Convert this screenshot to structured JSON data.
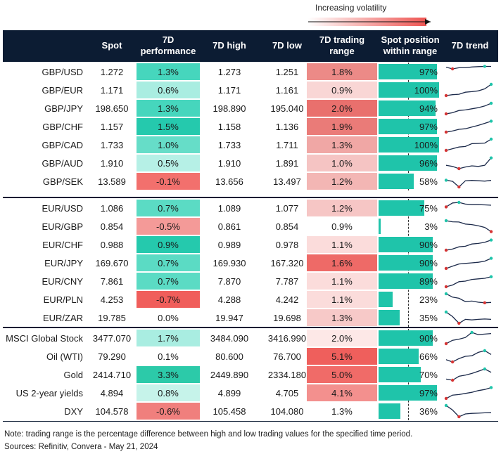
{
  "legend": {
    "label": "Increasing volatility"
  },
  "columns": {
    "spot": "Spot",
    "perf_line1": "7D",
    "perf_line2": "performance",
    "high": "7D high",
    "low": "7D low",
    "range_line1": "7D trading",
    "range_line2": "range",
    "pos_line1": "Spot position",
    "pos_line2": "within range",
    "trend": "7D trend"
  },
  "groups": [
    {
      "rows": [
        {
          "name": "GBP/USD",
          "spot": "1.272",
          "perf": "1.3%",
          "high": "1.273",
          "low": "1.251",
          "range": "1.8%",
          "pos": "97%",
          "pos_value": 97,
          "perf_color": "#46d6bd",
          "range_color": "#ec8a87",
          "trend": [
            0.9,
            0.75,
            0.85,
            0.85,
            0.92,
            0.95,
            0.97,
            0.97
          ]
        },
        {
          "name": "GBP/EUR",
          "spot": "1.171",
          "perf": "0.6%",
          "high": "1.171",
          "low": "1.161",
          "range": "0.9%",
          "pos": "100%",
          "pos_value": 100,
          "perf_color": "#a9ede1",
          "range_color": "#f9d6d5",
          "trend": [
            0.0,
            0.08,
            0.12,
            0.3,
            0.35,
            0.42,
            0.6,
            1.0
          ]
        },
        {
          "name": "GBP/JPY",
          "spot": "198.650",
          "perf": "1.3%",
          "high": "198.890",
          "low": "195.040",
          "range": "2.0%",
          "pos": "94%",
          "pos_value": 94,
          "perf_color": "#46d6bd",
          "range_color": "#e9706d",
          "trend": [
            0.0,
            0.1,
            0.3,
            0.35,
            0.45,
            0.55,
            0.7,
            0.94
          ]
        },
        {
          "name": "GBP/CHF",
          "spot": "1.157",
          "perf": "1.5%",
          "high": "1.158",
          "low": "1.136",
          "range": "1.9%",
          "pos": "97%",
          "pos_value": 97,
          "perf_color": "#25c9ad",
          "range_color": "#ea7b78",
          "trend": [
            0.0,
            0.1,
            0.25,
            0.3,
            0.45,
            0.6,
            0.78,
            0.97
          ]
        },
        {
          "name": "GBP/CAD",
          "spot": "1.733",
          "perf": "1.0%",
          "high": "1.733",
          "low": "1.711",
          "range": "1.3%",
          "pos": "100%",
          "pos_value": 100,
          "perf_color": "#66ddc8",
          "range_color": "#f0a7a5",
          "trend": [
            0.0,
            0.15,
            0.3,
            0.35,
            0.6,
            0.62,
            0.65,
            1.0
          ]
        },
        {
          "name": "GBP/AUD",
          "spot": "1.910",
          "perf": "0.5%",
          "high": "1.910",
          "low": "1.891",
          "range": "1.0%",
          "pos": "96%",
          "pos_value": 96,
          "perf_color": "#b6f0e6",
          "range_color": "#f5c4c3",
          "trend": [
            0.3,
            0.2,
            0.0,
            0.15,
            0.25,
            0.2,
            0.3,
            0.96
          ]
        },
        {
          "name": "GBP/SEK",
          "spot": "13.589",
          "perf": "-0.1%",
          "high": "13.656",
          "low": "13.497",
          "range": "1.2%",
          "pos": "58%",
          "pos_value": 58,
          "perf_color": "#f2706d",
          "range_color": "#f3b6b4",
          "trend": [
            0.6,
            0.5,
            0.0,
            0.55,
            0.58,
            0.55,
            0.52,
            0.58
          ]
        }
      ]
    },
    {
      "rows": [
        {
          "name": "EUR/USD",
          "spot": "1.086",
          "perf": "0.7%",
          "high": "1.089",
          "low": "1.077",
          "range": "1.2%",
          "pos": "75%",
          "pos_value": 75,
          "perf_color": "#5bdbc4",
          "range_color": "#f6c6c5",
          "trend": [
            0.6,
            0.95,
            1.0,
            0.85,
            0.8,
            0.8,
            0.78,
            0.75
          ]
        },
        {
          "name": "EUR/GBP",
          "spot": "0.854",
          "perf": "-0.5%",
          "high": "0.861",
          "low": "0.854",
          "range": "0.9%",
          "pos": "3%",
          "pos_value": 3,
          "perf_color": "#f49a98",
          "range_color": "#ffffff",
          "trend": [
            1.0,
            0.9,
            0.88,
            0.7,
            0.65,
            0.55,
            0.4,
            0.03
          ]
        },
        {
          "name": "EUR/CHF",
          "spot": "0.988",
          "perf": "0.9%",
          "high": "0.989",
          "low": "0.978",
          "range": "1.1%",
          "pos": "90%",
          "pos_value": 90,
          "perf_color": "#25c9ad",
          "range_color": "#fbdcdb",
          "trend": [
            0.0,
            0.1,
            0.3,
            0.35,
            0.55,
            0.6,
            0.7,
            0.9
          ]
        },
        {
          "name": "EUR/JPY",
          "spot": "169.670",
          "perf": "0.7%",
          "high": "169.930",
          "low": "167.320",
          "range": "1.6%",
          "pos": "90%",
          "pos_value": 90,
          "perf_color": "#5bdbc4",
          "range_color": "#ee6a67",
          "trend": [
            0.0,
            0.2,
            0.4,
            0.45,
            0.5,
            0.55,
            0.65,
            0.9
          ]
        },
        {
          "name": "EUR/CNY",
          "spot": "7.861",
          "perf": "0.7%",
          "high": "7.870",
          "low": "7.787",
          "range": "1.1%",
          "pos": "89%",
          "pos_value": 89,
          "perf_color": "#5bdbc4",
          "range_color": "#fbdcdb",
          "trend": [
            0.0,
            0.15,
            0.45,
            0.5,
            0.65,
            0.7,
            0.75,
            0.89
          ]
        },
        {
          "name": "EUR/PLN",
          "spot": "4.253",
          "perf": "-0.7%",
          "high": "4.288",
          "low": "4.242",
          "range": "1.1%",
          "pos": "23%",
          "pos_value": 23,
          "perf_color": "#f05e5b",
          "range_color": "#fbdcdb",
          "trend": [
            1.0,
            0.7,
            0.6,
            0.3,
            0.35,
            0.25,
            0.2,
            0.23
          ]
        },
        {
          "name": "EUR/ZAR",
          "spot": "19.785",
          "perf": "0.0%",
          "high": "19.947",
          "low": "19.698",
          "range": "1.3%",
          "pos": "35%",
          "pos_value": 35,
          "perf_color": "#ffffff",
          "range_color": "#f7c9c8",
          "trend": [
            1.0,
            0.6,
            0.0,
            0.35,
            0.3,
            0.35,
            0.38,
            0.35
          ]
        }
      ]
    },
    {
      "rows": [
        {
          "name": "MSCI Global Stock",
          "spot": "3477.070",
          "perf": "1.7%",
          "high": "3484.090",
          "low": "3416.990",
          "range": "2.0%",
          "pos": "90%",
          "pos_value": 90,
          "perf_color": "#a9ede1",
          "range_color": "#fde8e7",
          "trend": [
            0.0,
            0.3,
            0.4,
            0.55,
            1.0,
            0.8,
            0.85,
            0.9
          ]
        },
        {
          "name": "Oil (WTI)",
          "spot": "79.290",
          "perf": "0.1%",
          "high": "80.600",
          "low": "76.700",
          "range": "5.1%",
          "pos": "66%",
          "pos_value": 66,
          "perf_color": "#ffffff",
          "range_color": "#ef5f5c",
          "trend": [
            0.2,
            0.0,
            0.3,
            0.5,
            0.55,
            0.85,
            1.0,
            0.66
          ]
        },
        {
          "name": "Gold",
          "spot": "2414.710",
          "perf": "3.3%",
          "high": "2449.890",
          "low": "2334.180",
          "range": "5.0%",
          "pos": "70%",
          "pos_value": 70,
          "perf_color": "#2ccaa9",
          "range_color": "#f06b68",
          "trend": [
            0.1,
            0.0,
            0.35,
            0.45,
            0.6,
            0.8,
            1.0,
            0.7
          ]
        },
        {
          "name": "US 2-year yields",
          "spot": "4.894",
          "perf": "0.8%",
          "high": "4.899",
          "low": "4.705",
          "range": "4.1%",
          "pos": "97%",
          "pos_value": 97,
          "perf_color": "#c6f3ea",
          "range_color": "#f3908e",
          "trend": [
            0.0,
            0.3,
            0.35,
            0.45,
            0.55,
            0.7,
            0.8,
            0.97
          ]
        },
        {
          "name": "DXY",
          "spot": "104.578",
          "perf": "-0.6%",
          "high": "105.458",
          "low": "104.080",
          "range": "1.3%",
          "pos": "36%",
          "pos_value": 36,
          "perf_color": "#f07f7d",
          "range_color": "#ffffff",
          "trend": [
            1.0,
            0.6,
            0.0,
            0.25,
            0.3,
            0.32,
            0.35,
            0.36
          ]
        }
      ]
    }
  ],
  "note": "Note: trading range is the percentage difference between high and low trading values for the specified time period.",
  "sources": "Sources: Refinitiv, Convera - May 21, 2024",
  "colors": {
    "header_bg": "#0c1c33",
    "bar": "#1fc4aa",
    "trend_line": "#1c2a4a",
    "trend_low": "#d63434",
    "trend_high": "#1fc4aa"
  }
}
